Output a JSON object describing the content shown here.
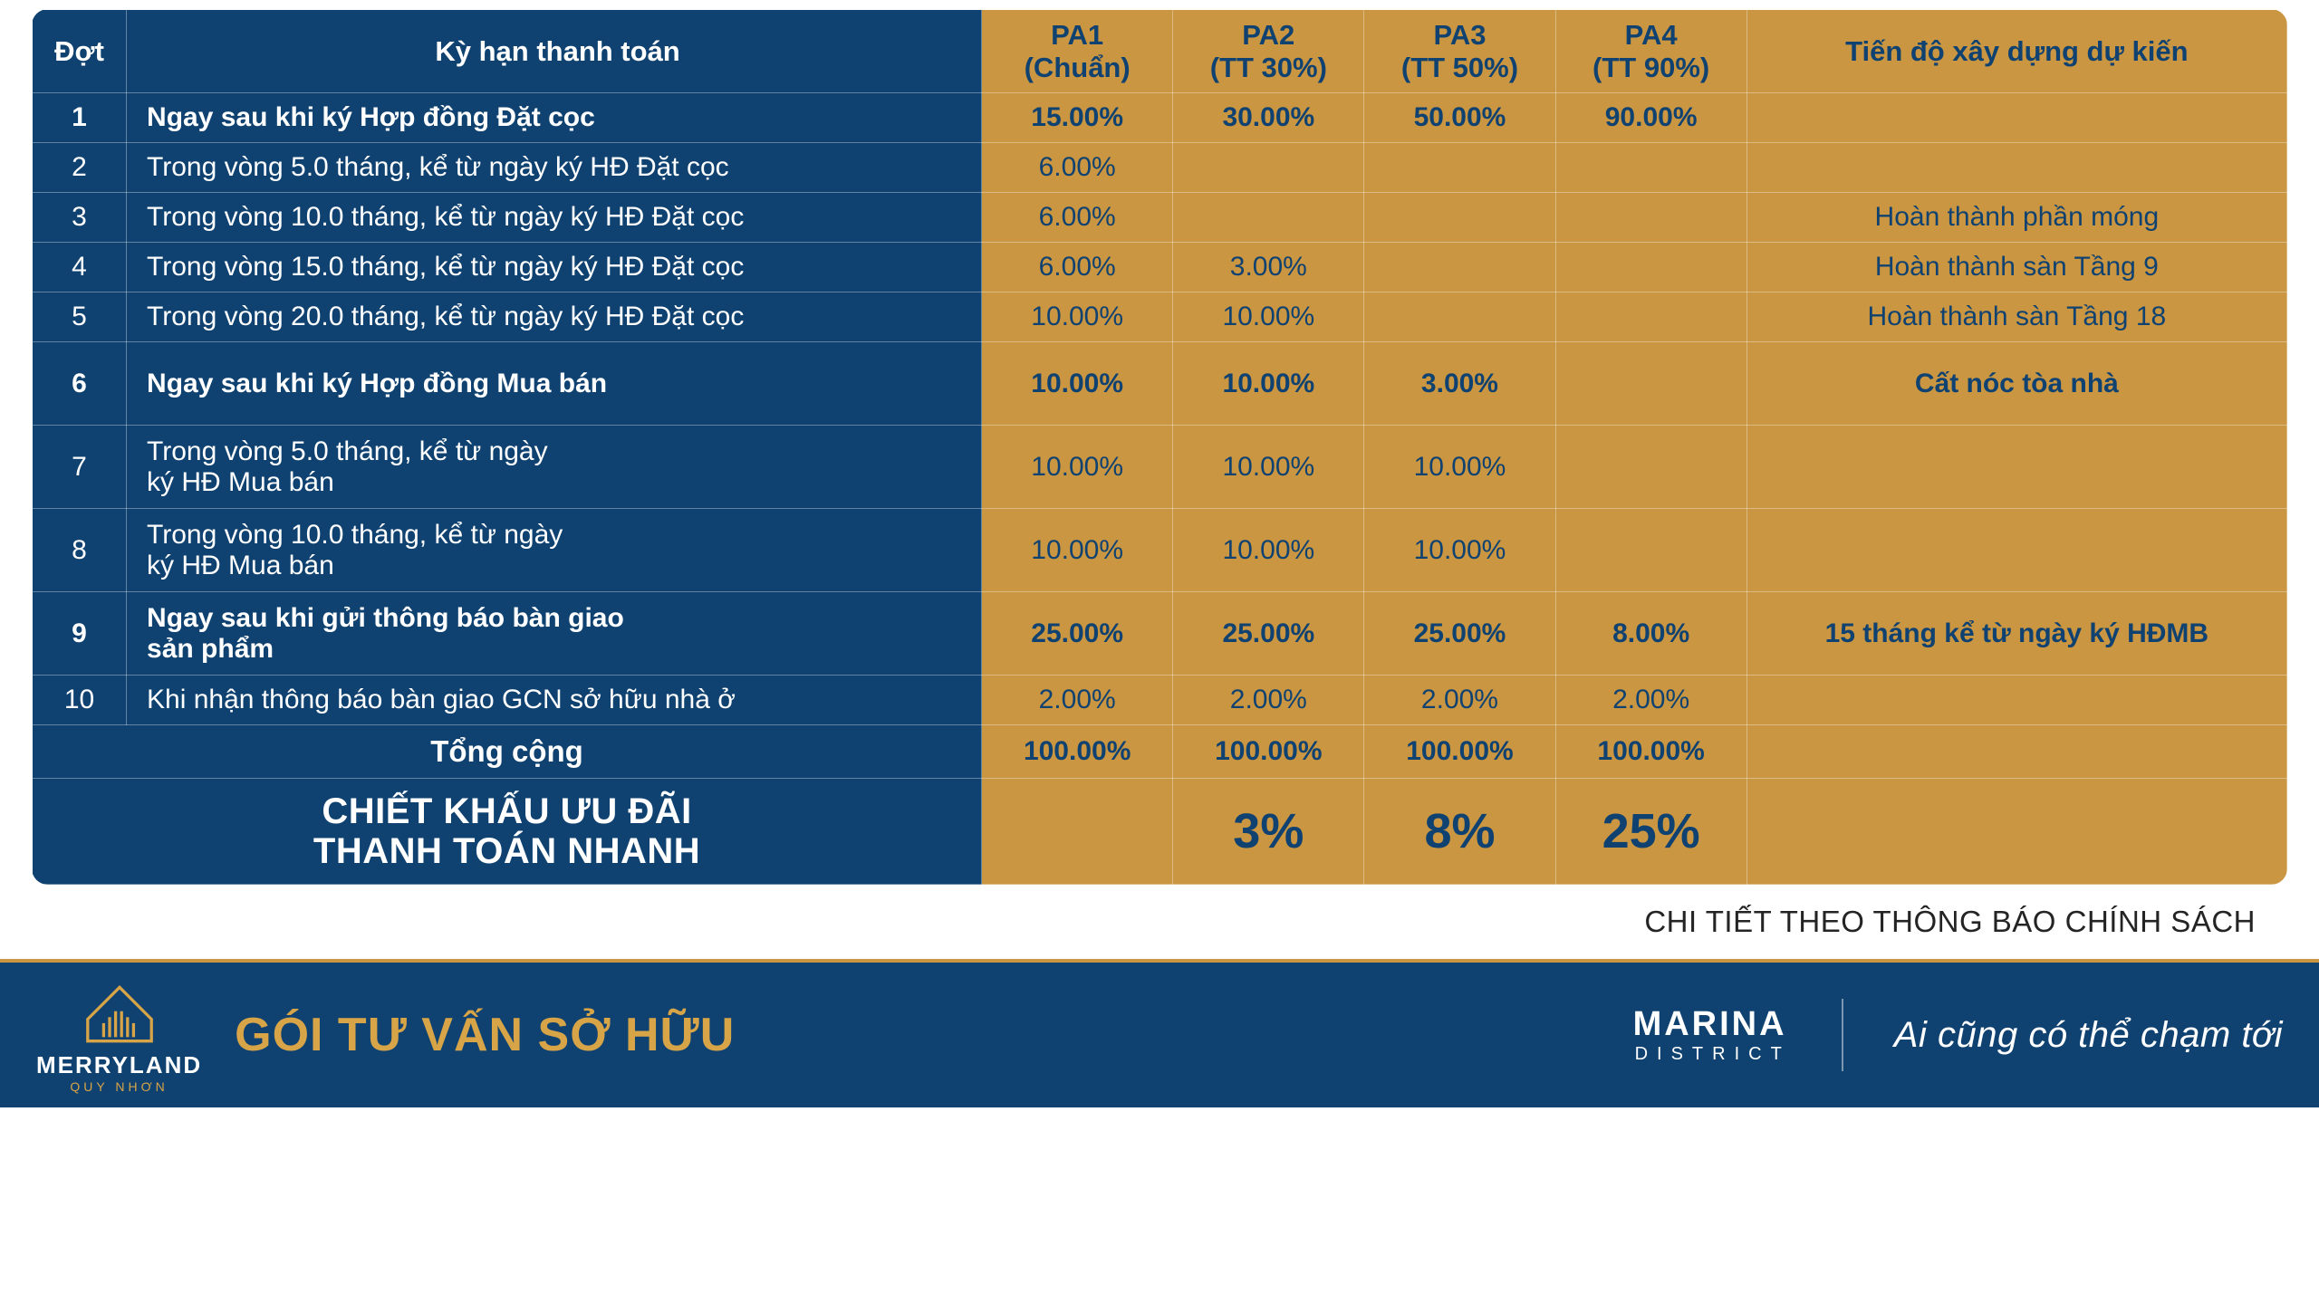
{
  "headers": {
    "dot": "Đợt",
    "ky": "Kỳ hạn thanh toán",
    "pa1": "PA1\n(Chuẩn)",
    "pa2": "PA2\n(TT 30%)",
    "pa3": "PA3\n(TT 50%)",
    "pa4": "PA4\n(TT 90%)",
    "prog": "Tiến độ xây dựng dự kiến"
  },
  "rows": [
    {
      "n": "1",
      "ky": "Ngay sau khi ký Hợp đồng Đặt cọc",
      "pa1": "15.00%",
      "pa2": "30.00%",
      "pa3": "50.00%",
      "pa4": "90.00%",
      "prog": "",
      "bold": true,
      "tall": false
    },
    {
      "n": "2",
      "ky": "Trong vòng 5.0 tháng, kể từ ngày ký HĐ Đặt cọc",
      "pa1": "6.00%",
      "pa2": "",
      "pa3": "",
      "pa4": "",
      "prog": "",
      "bold": false,
      "tall": false
    },
    {
      "n": "3",
      "ky": "Trong vòng 10.0 tháng, kể từ ngày ký HĐ Đặt cọc",
      "pa1": "6.00%",
      "pa2": "",
      "pa3": "",
      "pa4": "",
      "prog": "Hoàn thành phần móng",
      "bold": false,
      "tall": false
    },
    {
      "n": "4",
      "ky": "Trong vòng 15.0 tháng, kể từ ngày ký HĐ Đặt cọc",
      "pa1": "6.00%",
      "pa2": "3.00%",
      "pa3": "",
      "pa4": "",
      "prog": "Hoàn thành sàn Tầng 9",
      "bold": false,
      "tall": false
    },
    {
      "n": "5",
      "ky": "Trong vòng 20.0 tháng, kể từ ngày ký HĐ Đặt cọc",
      "pa1": "10.00%",
      "pa2": "10.00%",
      "pa3": "",
      "pa4": "",
      "prog": "Hoàn thành sàn Tầng 18",
      "bold": false,
      "tall": false
    },
    {
      "n": "6",
      "ky": "Ngay sau khi ký Hợp đồng Mua bán",
      "pa1": "10.00%",
      "pa2": "10.00%",
      "pa3": "3.00%",
      "pa4": "",
      "prog": "Cất nóc tòa nhà",
      "bold": true,
      "tall": true
    },
    {
      "n": "7",
      "ky": "Trong vòng 5.0 tháng, kể từ ngày\nký HĐ Mua bán",
      "pa1": "10.00%",
      "pa2": "10.00%",
      "pa3": "10.00%",
      "pa4": "",
      "prog": "",
      "bold": false,
      "tall": true
    },
    {
      "n": "8",
      "ky": "Trong vòng 10.0 tháng, kể từ ngày\nký HĐ Mua bán",
      "pa1": "10.00%",
      "pa2": "10.00%",
      "pa3": "10.00%",
      "pa4": "",
      "prog": "",
      "bold": false,
      "tall": true
    },
    {
      "n": "9",
      "ky": "Ngay sau khi gửi thông báo bàn giao\nsản phẩm",
      "pa1": "25.00%",
      "pa2": "25.00%",
      "pa3": "25.00%",
      "pa4": "8.00%",
      "prog": "15 tháng kể từ ngày ký HĐMB",
      "bold": true,
      "tall": true
    },
    {
      "n": "10",
      "ky": "Khi nhận thông báo bàn giao GCN sở hữu nhà ở",
      "pa1": "2.00%",
      "pa2": "2.00%",
      "pa3": "2.00%",
      "pa4": "2.00%",
      "prog": "",
      "bold": false,
      "tall": false
    }
  ],
  "totals": {
    "label": "Tổng cộng",
    "pa1": "100.00%",
    "pa2": "100.00%",
    "pa3": "100.00%",
    "pa4": "100.00%"
  },
  "discount": {
    "label": "CHIẾT KHẤU ƯU ĐÃI\nTHANH TOÁN NHANH",
    "pa1": "",
    "pa2": "3%",
    "pa3": "8%",
    "pa4": "25%"
  },
  "note": "CHI TIẾT THEO THÔNG BÁO CHÍNH SÁCH",
  "footer": {
    "logo_main": "MERRYLAND",
    "logo_sub": "QUY NHƠN",
    "goi": "GÓI TƯ VẤN SỞ HỮU",
    "marina": "MARINA",
    "district": "DISTRICT",
    "tag": "Ai cũng có thể chạm tới"
  },
  "style": {
    "blue": "#0f4270",
    "gold": "#ca9641",
    "white": "#ffffff"
  }
}
